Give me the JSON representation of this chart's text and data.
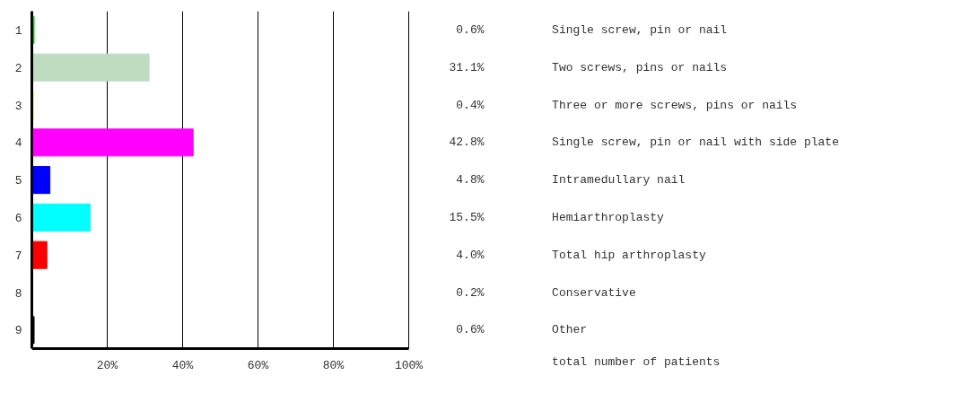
{
  "chart_data": {
    "type": "bar",
    "orientation": "horizontal",
    "categories": [
      "1",
      "2",
      "3",
      "4",
      "5",
      "6",
      "7",
      "8",
      "9"
    ],
    "values": [
      0.6,
      31.1,
      0.4,
      42.8,
      4.8,
      15.5,
      4.0,
      0.2,
      0.6
    ],
    "colors": [
      "#00e000",
      "#c0dcc0",
      "#ffff00",
      "#ff00ff",
      "#0000ff",
      "#00ffff",
      "#ff0000",
      "#a0a8c8",
      "#000000"
    ],
    "value_labels": [
      "0.6%",
      "31.1%",
      "0.4%",
      "42.8%",
      "4.8%",
      "15.5%",
      "4.0%",
      "0.2%",
      "0.6%"
    ],
    "annotations": [
      "Single screw, pin or nail",
      "Two screws, pins or nails",
      "Three or more screws, pins or nails",
      "Single screw, pin or nail with side plate",
      "Intramedullary nail",
      "Hemiarthroplasty",
      "Total hip arthroplasty",
      "Conservative",
      "Other",
      "total number of patients"
    ],
    "xlim": [
      0,
      100
    ],
    "xticks": [
      {
        "value": 0,
        "label": null
      },
      {
        "value": 20,
        "label": "20%"
      },
      {
        "value": 40,
        "label": "40%"
      },
      {
        "value": 60,
        "label": "60%"
      },
      {
        "value": 80,
        "label": "80%"
      },
      {
        "value": 100,
        "label": "100%"
      }
    ],
    "grid": "x"
  }
}
